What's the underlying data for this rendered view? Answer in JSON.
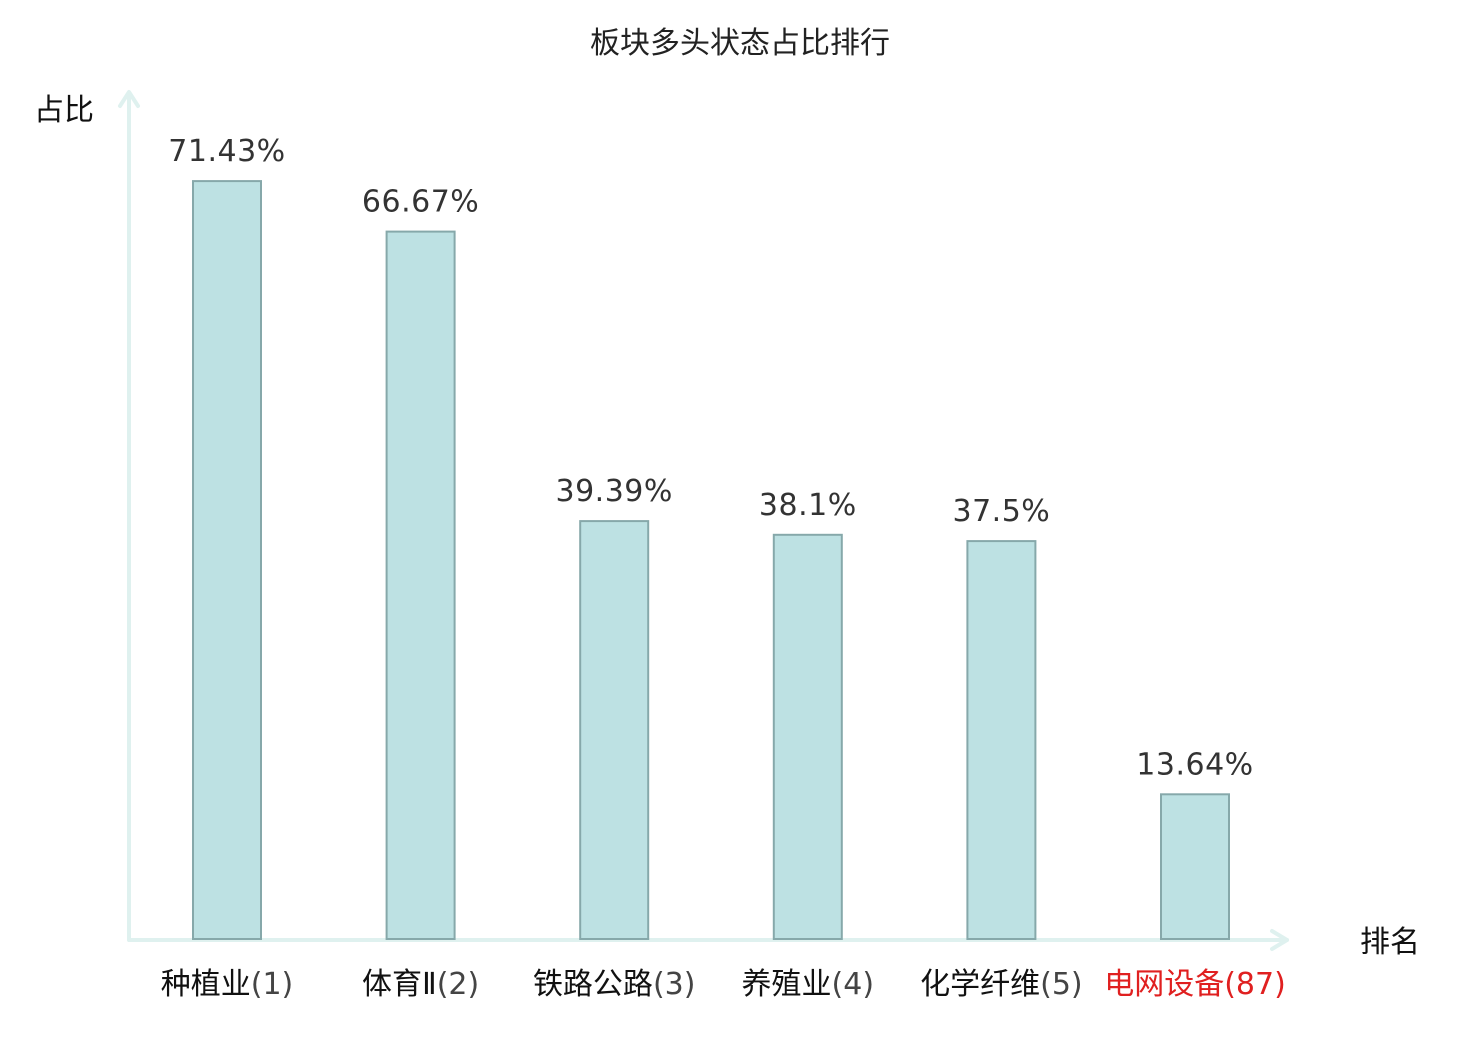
{
  "chart_data": {
    "type": "bar",
    "title": "板块多头状态占比排行",
    "ylabel": "占比",
    "xlabel": "排名",
    "ylim": [
      0,
      0.85
    ],
    "grid": false,
    "categories": [
      {
        "name": "种植业",
        "rank": "(1)",
        "highlight": false
      },
      {
        "name": "体育Ⅱ",
        "rank": "(2)",
        "highlight": false
      },
      {
        "name": "铁路公路",
        "rank": "(3)",
        "highlight": false
      },
      {
        "name": "养殖业",
        "rank": "(4)",
        "highlight": false
      },
      {
        "name": "化学纤维",
        "rank": "(5)",
        "highlight": false
      },
      {
        "name": "电网设备",
        "rank": "(87)",
        "highlight": true
      }
    ],
    "values": [
      0.7143,
      0.6667,
      0.3939,
      0.381,
      0.375,
      0.1364
    ],
    "value_labels": [
      "71.43%",
      "66.67%",
      "39.39%",
      "38.1%",
      "37.5%",
      "13.64%"
    ]
  },
  "colors": {
    "bar_fill": "#bde1e3",
    "bar_stroke": "#86a8aa",
    "axis": "#dff1ef",
    "text": "#111111",
    "rank_text": "#444444",
    "value_text": "#333333",
    "highlight": "#e02020"
  }
}
